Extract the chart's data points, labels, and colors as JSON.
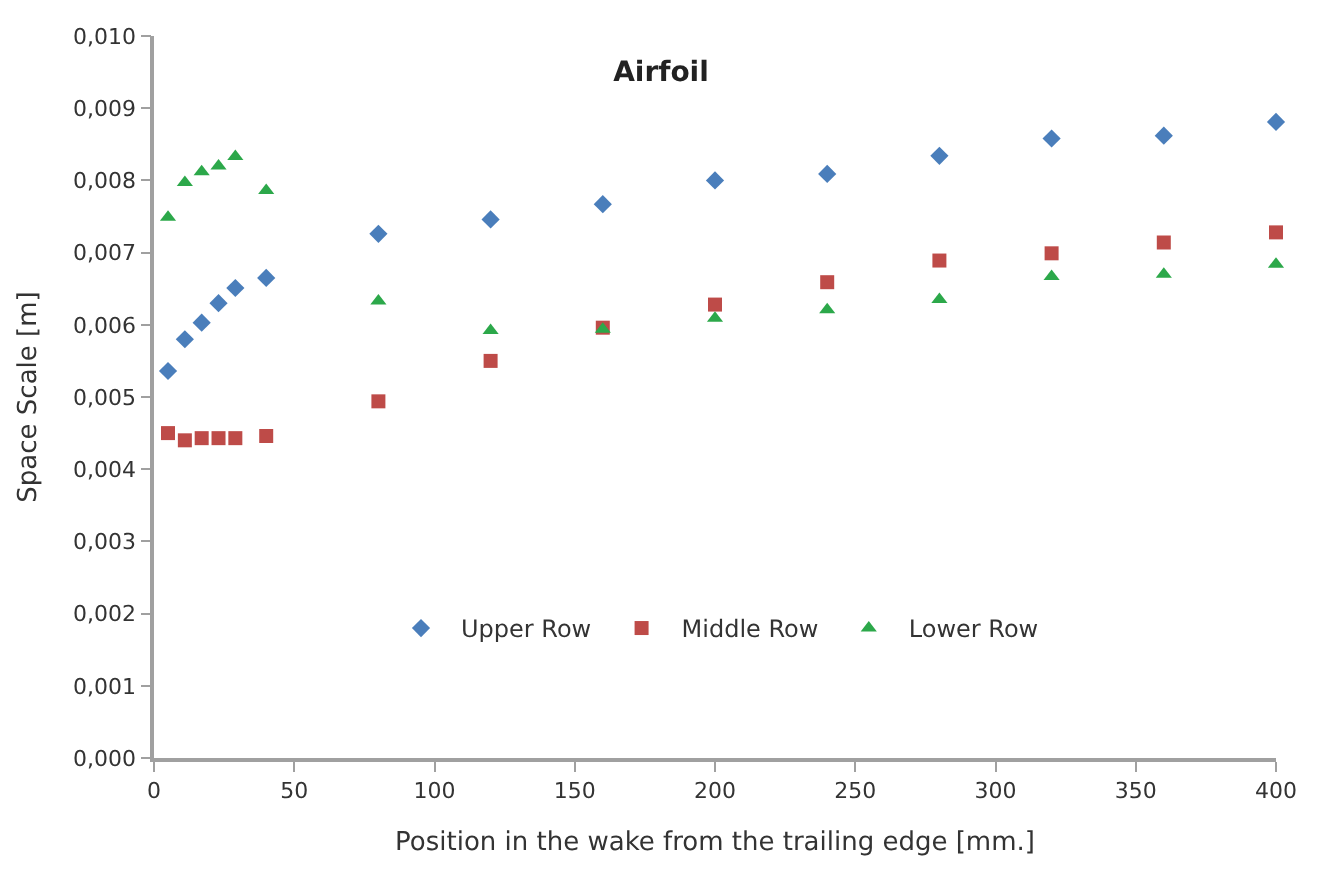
{
  "chart_data": {
    "type": "scatter",
    "title": "Airfoil",
    "xlabel": "Position in the wake from the trailing edge [mm.]",
    "ylabel": "Space Scale [m]",
    "x": [
      5,
      11,
      17,
      23,
      29,
      40,
      80,
      120,
      160,
      200,
      240,
      280,
      320,
      360,
      400
    ],
    "series": [
      {
        "name": "Upper Row",
        "color": "#4a7ebb",
        "marker": "diamond",
        "values": [
          0.00536,
          0.0058,
          0.00603,
          0.0063,
          0.00651,
          0.00665,
          0.00726,
          0.00746,
          0.00767,
          0.008,
          0.00809,
          0.00834,
          0.00858,
          0.00862,
          0.00881
        ]
      },
      {
        "name": "Middle Row",
        "color": "#be4b48",
        "marker": "square",
        "values": [
          0.0045,
          0.0044,
          0.00443,
          0.00443,
          0.00443,
          0.00446,
          0.00494,
          0.0055,
          0.00596,
          0.00628,
          0.00659,
          0.00689,
          0.00699,
          0.00714,
          0.00728
        ]
      },
      {
        "name": "Lower Row",
        "color": "#2ca84a",
        "marker": "triangle",
        "values": [
          0.00749,
          0.00797,
          0.00812,
          0.0082,
          0.00833,
          0.00786,
          0.00633,
          0.00592,
          0.00594,
          0.00609,
          0.00621,
          0.00635,
          0.00667,
          0.0067,
          0.00684
        ]
      }
    ],
    "xlim": [
      0,
      400
    ],
    "xticks": [
      0,
      50,
      100,
      150,
      200,
      250,
      300,
      350,
      400
    ],
    "ylim": [
      0,
      0.01
    ],
    "yticks": [
      {
        "value": 0,
        "label": "0,000"
      },
      {
        "value": 0.001,
        "label": "0,001"
      },
      {
        "value": 0.002,
        "label": "0,002"
      },
      {
        "value": 0.003,
        "label": "0,003"
      },
      {
        "value": 0.004,
        "label": "0,004"
      },
      {
        "value": 0.005,
        "label": "0,005"
      },
      {
        "value": 0.006,
        "label": "0,006"
      },
      {
        "value": 0.007,
        "label": "0,007"
      },
      {
        "value": 0.008,
        "label": "0,008"
      },
      {
        "value": 0.009,
        "label": "0,009"
      },
      {
        "value": 0.01,
        "label": "0,010"
      }
    ],
    "legend": "bottom"
  }
}
